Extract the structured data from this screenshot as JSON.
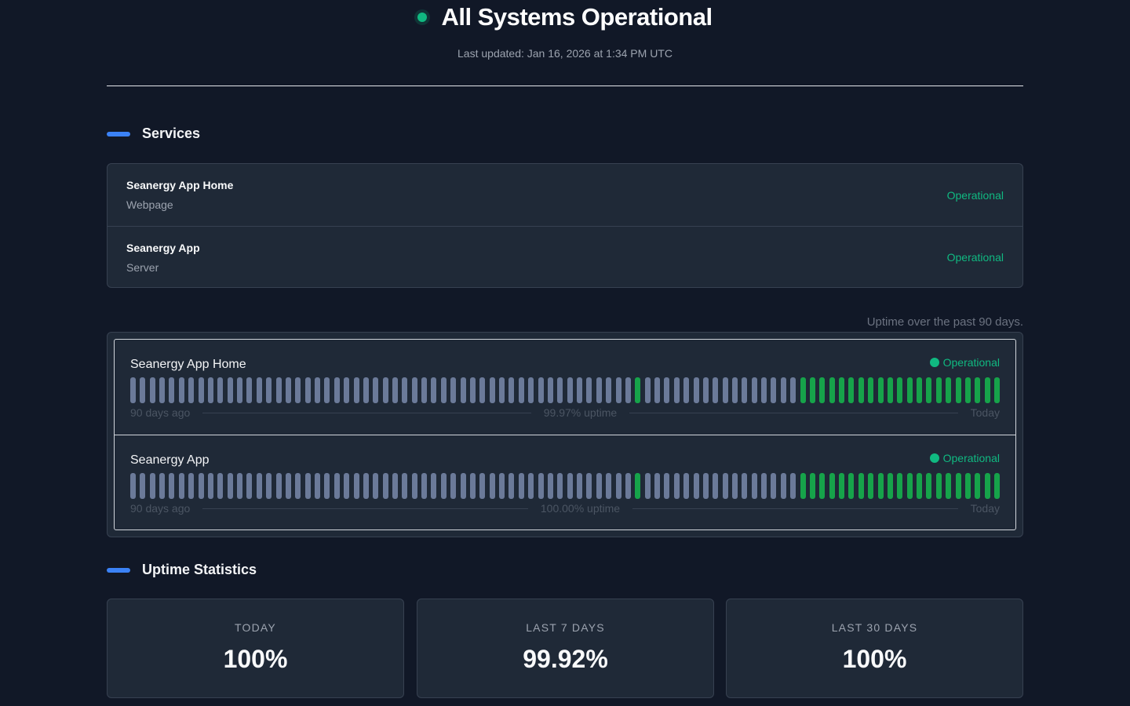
{
  "header": {
    "title": "All Systems Operational",
    "last_updated": "Last updated: Jan 16, 2026 at 1:34 PM UTC",
    "status_color": "#10b981"
  },
  "services_section": {
    "heading": "Services",
    "items": [
      {
        "name": "Seanergy App Home",
        "type": "Webpage",
        "status": "Operational"
      },
      {
        "name": "Seanergy App",
        "type": "Server",
        "status": "Operational"
      }
    ]
  },
  "uptime_section": {
    "caption": "Uptime over the past 90 days.",
    "bar_colors": {
      "up": "#16a34a",
      "no_data": "#6b7a99"
    },
    "monitors": [
      {
        "name": "Seanergy App Home",
        "status": "Operational",
        "start_label": "90 days ago",
        "uptime_label": "99.97% uptime",
        "end_label": "Today"
      },
      {
        "name": "Seanergy App",
        "status": "Operational",
        "start_label": "90 days ago",
        "uptime_label": "100.00% uptime",
        "end_label": "Today"
      }
    ]
  },
  "stats_section": {
    "heading": "Uptime Statistics",
    "cards": [
      {
        "label": "TODAY",
        "value": "100%"
      },
      {
        "label": "LAST 7 DAYS",
        "value": "99.92%"
      },
      {
        "label": "LAST 30 DAYS",
        "value": "100%"
      }
    ]
  }
}
